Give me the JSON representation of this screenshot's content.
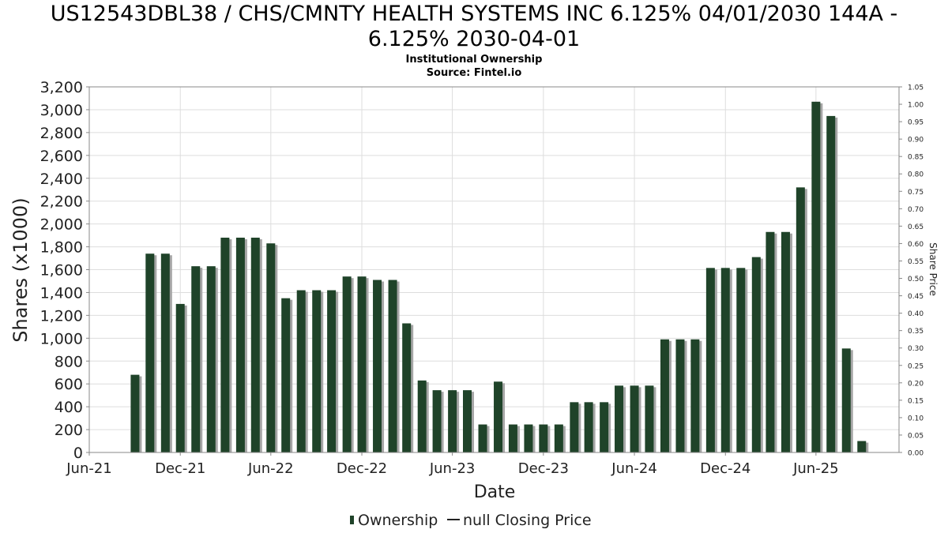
{
  "title_line1": "US12543DBL38 / CHS/CMNTY HEALTH SYSTEMS INC 6.125% 04/01/2030 144A -",
  "title_line2": "6.125% 2030-04-01",
  "subtitle_line1": "Institutional Ownership",
  "subtitle_line2": "Source: Fintel.io",
  "legend": {
    "ownership": "Ownership",
    "price": "null Closing Price"
  },
  "colors": {
    "bar": "#1f4329",
    "bar_shadow": "#a6a6a6",
    "grid": "#dddddd",
    "frame": "#888888"
  },
  "chart_data": {
    "type": "bar",
    "title": "US12543DBL38 / CHS/CMNTY HEALTH SYSTEMS INC 6.125% 04/01/2030 144A - 6.125% 2030-04-01",
    "xlabel": "Date",
    "ylabel": "Shares (x1000)",
    "y2label": "Share Price",
    "ylim": [
      0,
      3200
    ],
    "y2lim": [
      0,
      1.05
    ],
    "yticks": [
      0,
      200,
      400,
      600,
      800,
      1000,
      1200,
      1400,
      1600,
      1800,
      2000,
      2200,
      2400,
      2600,
      2800,
      3000,
      3200
    ],
    "y2ticks": [
      "0.00",
      "0.05",
      "0.10",
      "0.15",
      "0.20",
      "0.25",
      "0.30",
      "0.35",
      "0.40",
      "0.45",
      "0.50",
      "0.55",
      "0.60",
      "0.65",
      "0.70",
      "0.75",
      "0.80",
      "0.85",
      "0.90",
      "0.95",
      "1.00",
      "1.05"
    ],
    "xticks": [
      "Jun-21",
      "Dec-21",
      "Jun-22",
      "Dec-22",
      "Jun-23",
      "Dec-23",
      "Jun-24",
      "Dec-24",
      "Jun-25"
    ],
    "x_start": "2021-06-01",
    "x_end": "2025-11-15",
    "grid": true,
    "legend_position": "bottom",
    "series": [
      {
        "name": "Ownership",
        "points": [
          [
            "2021-09-01",
            680
          ],
          [
            "2021-10-01",
            1740
          ],
          [
            "2021-11-01",
            1740
          ],
          [
            "2021-12-01",
            1300
          ],
          [
            "2022-01-01",
            1630
          ],
          [
            "2022-02-01",
            1630
          ],
          [
            "2022-03-01",
            1880
          ],
          [
            "2022-04-01",
            1880
          ],
          [
            "2022-05-01",
            1880
          ],
          [
            "2022-06-01",
            1830
          ],
          [
            "2022-07-01",
            1350
          ],
          [
            "2022-08-01",
            1420
          ],
          [
            "2022-09-01",
            1420
          ],
          [
            "2022-10-01",
            1420
          ],
          [
            "2022-11-01",
            1540
          ],
          [
            "2022-12-01",
            1540
          ],
          [
            "2023-01-01",
            1510
          ],
          [
            "2023-02-01",
            1510
          ],
          [
            "2023-03-01",
            1130
          ],
          [
            "2023-04-01",
            630
          ],
          [
            "2023-05-01",
            545
          ],
          [
            "2023-06-01",
            545
          ],
          [
            "2023-07-01",
            545
          ],
          [
            "2023-08-01",
            245
          ],
          [
            "2023-09-01",
            620
          ],
          [
            "2023-10-01",
            245
          ],
          [
            "2023-11-01",
            245
          ],
          [
            "2023-12-01",
            245
          ],
          [
            "2024-01-01",
            245
          ],
          [
            "2024-02-01",
            440
          ],
          [
            "2024-03-01",
            440
          ],
          [
            "2024-04-01",
            440
          ],
          [
            "2024-05-01",
            585
          ],
          [
            "2024-06-01",
            585
          ],
          [
            "2024-07-01",
            585
          ],
          [
            "2024-08-01",
            990
          ],
          [
            "2024-09-01",
            990
          ],
          [
            "2024-10-01",
            990
          ],
          [
            "2024-11-01",
            1615
          ],
          [
            "2024-12-01",
            1615
          ],
          [
            "2025-01-01",
            1615
          ],
          [
            "2025-02-01",
            1710
          ],
          [
            "2025-03-01",
            1930
          ],
          [
            "2025-04-01",
            1930
          ],
          [
            "2025-05-01",
            2320
          ],
          [
            "2025-06-01",
            3070
          ],
          [
            "2025-07-01",
            2945
          ],
          [
            "2025-08-01",
            910
          ],
          [
            "2025-09-01",
            100
          ]
        ]
      },
      {
        "name": "null Closing Price",
        "points": []
      }
    ]
  }
}
